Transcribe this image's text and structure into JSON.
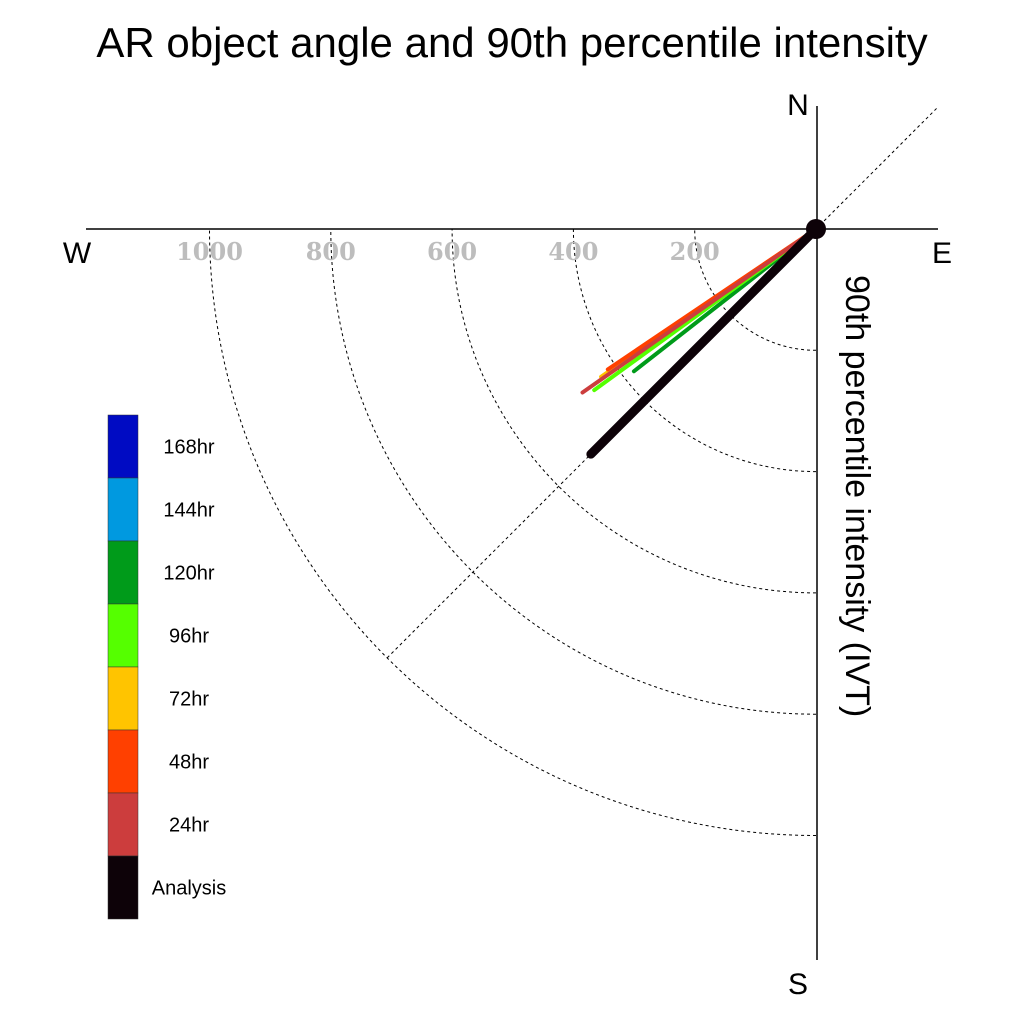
{
  "chart_data": {
    "type": "polar-vector",
    "title": "AR object angle and 90th percentile intensity",
    "radial_label": "90th percentile intensity (IVT)",
    "compass": {
      "n": "N",
      "e": "E",
      "s": "S",
      "w": "W"
    },
    "radial_ticks": [
      200,
      400,
      600,
      800,
      1000
    ],
    "radial_max": 1000,
    "series": [
      {
        "name": "Analysis",
        "angle_deg": 225,
        "intensity": 525,
        "color": "#0d0208"
      },
      {
        "name": "24hr",
        "angle_deg": 235,
        "intensity": 470,
        "color": "#cc3d3d"
      },
      {
        "name": "48hr",
        "angle_deg": 236,
        "intensity": 414,
        "color": "#ff4000"
      },
      {
        "name": "72hr",
        "angle_deg": 235.5,
        "intensity": 430,
        "color": "#ffc400"
      },
      {
        "name": "96hr",
        "angle_deg": 234,
        "intensity": 452,
        "color": "#55ff00"
      },
      {
        "name": "120hr",
        "angle_deg": 232,
        "intensity": 381,
        "color": "#009b1a"
      }
    ],
    "legend": [
      {
        "label": "168hr",
        "color": "#000bc3"
      },
      {
        "label": "144hr",
        "color": "#0099e0"
      },
      {
        "label": "120hr",
        "color": "#009b1a"
      },
      {
        "label": "96hr",
        "color": "#55ff00"
      },
      {
        "label": "72hr",
        "color": "#ffc400"
      },
      {
        "label": "48hr",
        "color": "#ff4000"
      },
      {
        "label": "24hr",
        "color": "#cc3d3d"
      },
      {
        "label": "Analysis",
        "color": "#0d0208"
      }
    ],
    "legend_placement": "lower-left",
    "grid": true
  }
}
